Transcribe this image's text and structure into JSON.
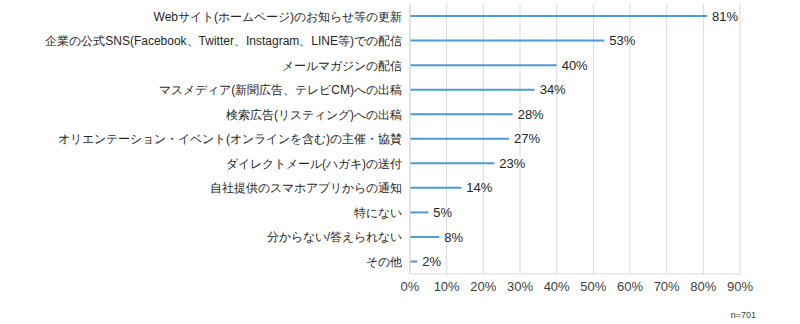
{
  "chart_data": {
    "type": "bar",
    "orientation": "horizontal",
    "categories": [
      "Webサイト(ホームページ)のお知らせ等の更新",
      "企業の公式SNS(Facebook、Twitter、Instagram、LINE等)での配信",
      "メールマガジンの配信",
      "マスメディア(新聞広告、テレビCM)への出稿",
      "検索広告(リスティング)への出稿",
      "オリエンテーション・イベント(オンラインを含む)の主催・協賛",
      "ダイレクトメール(ハガキ)の送付",
      "自社提供のスマホアプリからの通知",
      "特にない",
      "分からない/答えられない",
      "その他"
    ],
    "values": [
      81,
      53,
      40,
      34,
      28,
      27,
      23,
      14,
      5,
      8,
      2
    ],
    "value_labels": [
      "81%",
      "53%",
      "40%",
      "34%",
      "28%",
      "27%",
      "23%",
      "14%",
      "5%",
      "8%",
      "2%"
    ],
    "color": "#4a9cd6",
    "xlim": [
      0,
      90
    ],
    "xticks": [
      {
        "value": 0,
        "label": "0%"
      },
      {
        "value": 10,
        "label": "10%"
      },
      {
        "value": 20,
        "label": "20%"
      },
      {
        "value": 30,
        "label": "30%"
      },
      {
        "value": 40,
        "label": "40%"
      },
      {
        "value": 50,
        "label": "50%"
      },
      {
        "value": 60,
        "label": "60%"
      },
      {
        "value": 70,
        "label": "70%"
      },
      {
        "value": 80,
        "label": "80%"
      },
      {
        "value": 90,
        "label": "90%"
      }
    ],
    "grid": true,
    "data_labels": true,
    "annotations": [
      "n=701"
    ]
  }
}
